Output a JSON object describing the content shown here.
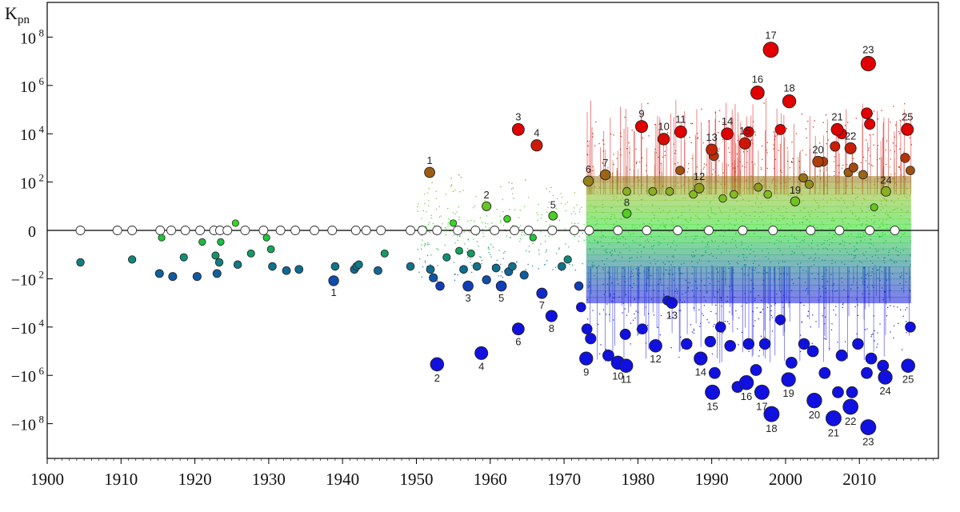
{
  "chart_data": {
    "type": "scatter",
    "title": "",
    "xlabel": "",
    "ylabel": "K",
    "ylabel_subscript": "pn",
    "y_scale": "symlog",
    "xlim": [
      1900,
      2017
    ],
    "ylim": [
      -1000000000.0,
      1000000000.0
    ],
    "grid": false,
    "legend": "none",
    "x_ticks": [
      1900,
      1910,
      1920,
      1930,
      1940,
      1950,
      1960,
      1970,
      1980,
      1990,
      2000,
      2010
    ],
    "x_tick_labels": [
      "1900",
      "1910",
      "1920",
      "1930",
      "1940",
      "1950",
      "1960",
      "1970",
      "1980",
      "1990",
      "2000",
      "2010"
    ],
    "y_ticks": [
      {
        "value": 100000000.0,
        "base": "10",
        "exp": "8"
      },
      {
        "value": 1000000.0,
        "base": "10",
        "exp": "6"
      },
      {
        "value": 10000.0,
        "base": "10",
        "exp": "4"
      },
      {
        "value": 100.0,
        "base": "10",
        "exp": "2"
      },
      {
        "value": 0,
        "base": "0",
        "exp": ""
      },
      {
        "value": -100.0,
        "base": "−10",
        "exp": "2"
      },
      {
        "value": -10000.0,
        "base": "−10",
        "exp": "4"
      },
      {
        "value": -1000000.0,
        "base": "−10",
        "exp": "6"
      },
      {
        "value": -100000000.0,
        "base": "−10",
        "exp": "8"
      }
    ],
    "colors": {
      "positive_high": "#e00000",
      "positive_mid": "#a05010",
      "near_zero": "#22dd22",
      "negative_mid": "#108080",
      "negative_high": "#1010e0",
      "zero_marker": "#ffffff"
    },
    "annotated_positive": [
      {
        "label": "1",
        "x": 1951.8,
        "y": 250
      },
      {
        "label": "2",
        "x": 1959.5,
        "y": 9
      },
      {
        "label": "3",
        "x": 1963.8,
        "y": 15000
      },
      {
        "label": "4",
        "x": 1966.3,
        "y": 3300
      },
      {
        "label": "5",
        "x": 1968.5,
        "y": 3
      },
      {
        "label": "6",
        "x": 1973.3,
        "y": 110
      },
      {
        "label": "7",
        "x": 1975.6,
        "y": 200
      },
      {
        "label": "8",
        "x": 1978.5,
        "y": 4
      },
      {
        "label": "9",
        "x": 1980.5,
        "y": 20000
      },
      {
        "label": "10",
        "x": 1983.5,
        "y": 6000
      },
      {
        "label": "11",
        "x": 1985.8,
        "y": 12000
      },
      {
        "label": "12",
        "x": 1988.3,
        "y": 55
      },
      {
        "label": "13",
        "x": 1990,
        "y": 2200
      },
      {
        "label": "14",
        "x": 1992.1,
        "y": 10000
      },
      {
        "label": "15",
        "x": 1994.5,
        "y": 4000
      },
      {
        "label": "16",
        "x": 1996.2,
        "y": 500000
      },
      {
        "label": "17",
        "x": 1998,
        "y": 30000000
      },
      {
        "label": "18",
        "x": 2000.5,
        "y": 220000
      },
      {
        "label": "19",
        "x": 2001.3,
        "y": 15
      },
      {
        "label": "20",
        "x": 2004.4,
        "y": 700
      },
      {
        "label": "21",
        "x": 2007,
        "y": 15000
      },
      {
        "label": "22",
        "x": 2008.8,
        "y": 2500
      },
      {
        "label": "23",
        "x": 2011.2,
        "y": 8000000
      },
      {
        "label": "24",
        "x": 2013.6,
        "y": 40
      },
      {
        "label": "25",
        "x": 2016.5,
        "y": 15000
      }
    ],
    "annotated_negative": [
      {
        "label": "1",
        "x": 1938.8,
        "y": -120
      },
      {
        "label": "2",
        "x": 1952.8,
        "y": -350000
      },
      {
        "label": "3",
        "x": 1957,
        "y": -200
      },
      {
        "label": "4",
        "x": 1958.8,
        "y": -120000
      },
      {
        "label": "5",
        "x": 1961.5,
        "y": -200
      },
      {
        "label": "6",
        "x": 1963.8,
        "y": -12000
      },
      {
        "label": "7",
        "x": 1967,
        "y": -400
      },
      {
        "label": "8",
        "x": 1968.3,
        "y": -3500
      },
      {
        "label": "9",
        "x": 1973,
        "y": -200000
      },
      {
        "label": "10",
        "x": 1977.3,
        "y": -300000
      },
      {
        "label": "11",
        "x": 1978.4,
        "y": -400000
      },
      {
        "label": "12",
        "x": 1982.4,
        "y": -60000
      },
      {
        "label": "13",
        "x": 1984.6,
        "y": -1000
      },
      {
        "label": "14",
        "x": 1988.5,
        "y": -200000
      },
      {
        "label": "15",
        "x": 1990.1,
        "y": -5000000
      },
      {
        "label": "16",
        "x": 1994.7,
        "y": -2000000
      },
      {
        "label": "17",
        "x": 1996.8,
        "y": -5000000
      },
      {
        "label": "18",
        "x": 1998.1,
        "y": -40000000
      },
      {
        "label": "19",
        "x": 2000.4,
        "y": -1500000
      },
      {
        "label": "20",
        "x": 2003.9,
        "y": -11000000
      },
      {
        "label": "21",
        "x": 2006.5,
        "y": -60000000
      },
      {
        "label": "22",
        "x": 2008.8,
        "y": -20000000
      },
      {
        "label": "23",
        "x": 2011.2,
        "y": -140000000
      },
      {
        "label": "24",
        "x": 2013.5,
        "y": -1200000
      },
      {
        "label": "25",
        "x": 2016.6,
        "y": -400000
      }
    ],
    "other_points": [
      {
        "x": 1904.5,
        "y": -20
      },
      {
        "x": 1911.5,
        "y": -15
      },
      {
        "x": 1915.5,
        "y": -1
      },
      {
        "x": 1915.2,
        "y": -60
      },
      {
        "x": 1917,
        "y": -80
      },
      {
        "x": 1918.5,
        "y": -12
      },
      {
        "x": 1920.3,
        "y": -80
      },
      {
        "x": 1921,
        "y": -2
      },
      {
        "x": 1923,
        "y": -60
      },
      {
        "x": 1923.3,
        "y": -20
      },
      {
        "x": 1922.8,
        "y": -10
      },
      {
        "x": 1923.5,
        "y": -2
      },
      {
        "x": 1925.8,
        "y": -25
      },
      {
        "x": 1927.6,
        "y": -8
      },
      {
        "x": 1929.7,
        "y": -1
      },
      {
        "x": 1930.3,
        "y": -5
      },
      {
        "x": 1930.5,
        "y": -30
      },
      {
        "x": 1932.4,
        "y": -45
      },
      {
        "x": 1934.1,
        "y": -40
      },
      {
        "x": 1939,
        "y": -30
      },
      {
        "x": 1941.6,
        "y": -40
      },
      {
        "x": 1941.9,
        "y": -30
      },
      {
        "x": 1942.2,
        "y": -25
      },
      {
        "x": 1944.8,
        "y": -45
      },
      {
        "x": 1945.7,
        "y": -8
      },
      {
        "x": 1949.2,
        "y": -30
      },
      {
        "x": 1951.9,
        "y": -40
      },
      {
        "x": 1952.3,
        "y": -90
      },
      {
        "x": 1953.2,
        "y": -200
      },
      {
        "x": 1954.1,
        "y": -12
      },
      {
        "x": 1955.8,
        "y": -6
      },
      {
        "x": 1956.4,
        "y": -40
      },
      {
        "x": 1957.4,
        "y": -8
      },
      {
        "x": 1958.2,
        "y": -30
      },
      {
        "x": 1959.5,
        "y": -110
      },
      {
        "x": 1960.8,
        "y": -35
      },
      {
        "x": 1962.5,
        "y": -50
      },
      {
        "x": 1963,
        "y": -30
      },
      {
        "x": 1964.6,
        "y": -70
      },
      {
        "x": 1965.8,
        "y": -1
      },
      {
        "x": 1969.7,
        "y": -30
      },
      {
        "x": 1970.5,
        "y": -15
      },
      {
        "x": 1972,
        "y": -200
      },
      {
        "x": 1972.3,
        "y": -1500
      },
      {
        "x": 1973.1,
        "y": -12000
      },
      {
        "x": 1973.6,
        "y": -30000
      },
      {
        "x": 1976,
        "y": -150000
      },
      {
        "x": 1978.3,
        "y": -20000
      },
      {
        "x": 1980.6,
        "y": -12000
      },
      {
        "x": 1984,
        "y": -800
      },
      {
        "x": 1986.6,
        "y": -50000
      },
      {
        "x": 1989.8,
        "y": -40000
      },
      {
        "x": 1990.4,
        "y": -800000
      },
      {
        "x": 1991.2,
        "y": -10000
      },
      {
        "x": 1992.5,
        "y": -60000
      },
      {
        "x": 1993.5,
        "y": -3000000
      },
      {
        "x": 1995,
        "y": -50000
      },
      {
        "x": 1996,
        "y": -600000
      },
      {
        "x": 1997.2,
        "y": -50000
      },
      {
        "x": 1999.3,
        "y": -5000
      },
      {
        "x": 2000.8,
        "y": -300000
      },
      {
        "x": 2002.5,
        "y": -50000
      },
      {
        "x": 2003.7,
        "y": -100000
      },
      {
        "x": 2005.3,
        "y": -800000
      },
      {
        "x": 2007.1,
        "y": -5000000
      },
      {
        "x": 2007.6,
        "y": -150000
      },
      {
        "x": 2009,
        "y": -5000000
      },
      {
        "x": 2009.8,
        "y": -50000
      },
      {
        "x": 2011,
        "y": -800000
      },
      {
        "x": 2011.6,
        "y": -200000
      },
      {
        "x": 2013.2,
        "y": -400000
      },
      {
        "x": 2016.9,
        "y": -10000
      },
      {
        "x": 1925.5,
        "y": 1
      },
      {
        "x": 1955,
        "y": 1
      },
      {
        "x": 1962.3,
        "y": 2
      },
      {
        "x": 1978.5,
        "y": 40
      },
      {
        "x": 1982,
        "y": 40
      },
      {
        "x": 1984.3,
        "y": 40
      },
      {
        "x": 1985.7,
        "y": 300
      },
      {
        "x": 1987.5,
        "y": 30
      },
      {
        "x": 1990.3,
        "y": 1200
      },
      {
        "x": 1991.5,
        "y": 20
      },
      {
        "x": 1993,
        "y": 30
      },
      {
        "x": 1995,
        "y": 12000
      },
      {
        "x": 1996.3,
        "y": 60
      },
      {
        "x": 1997.6,
        "y": 30
      },
      {
        "x": 1999.3,
        "y": 15000
      },
      {
        "x": 2002.4,
        "y": 150
      },
      {
        "x": 2003.2,
        "y": 80
      },
      {
        "x": 2005.1,
        "y": 700
      },
      {
        "x": 2006.7,
        "y": 3000
      },
      {
        "x": 2007.6,
        "y": 10000
      },
      {
        "x": 2008.5,
        "y": 250
      },
      {
        "x": 2009.2,
        "y": 400
      },
      {
        "x": 2010.5,
        "y": 200
      },
      {
        "x": 2011,
        "y": 70000
      },
      {
        "x": 2011.4,
        "y": 25000
      },
      {
        "x": 2012,
        "y": 8
      },
      {
        "x": 2016.9,
        "y": 300
      },
      {
        "x": 2016.2,
        "y": 1000
      }
    ]
  }
}
